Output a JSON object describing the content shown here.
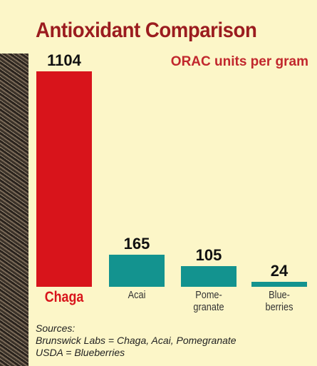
{
  "chart_data": {
    "type": "bar",
    "title": "Antioxidant Comparison",
    "subtitle": "ORAC units per gram",
    "categories": [
      "Chaga",
      "Acai",
      "Pome-\ngranate",
      "Blue-\nberries"
    ],
    "values": [
      1104,
      165,
      105,
      24
    ],
    "colors": [
      "#d8141b",
      "#13938f",
      "#13938f",
      "#13938f"
    ],
    "notes": [
      "Sources:",
      "Brunswick Labs = Chaga, Acai, Pomegranate",
      "USDA = Blueberries"
    ]
  }
}
